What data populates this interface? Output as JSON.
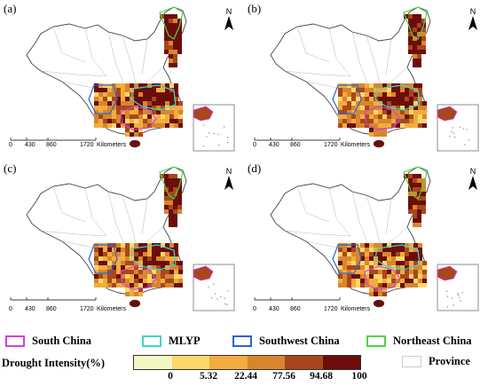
{
  "panels": [
    {
      "label": "(a)"
    },
    {
      "label": "(b)"
    },
    {
      "label": "(c)"
    },
    {
      "label": "(d)"
    }
  ],
  "north_arrow_text": "N",
  "scale_bar": {
    "ticks": [
      "0",
      "430",
      "860",
      "1720"
    ],
    "unit": "Kilometers"
  },
  "regions": [
    {
      "name": "South China",
      "color": "#d63fd6"
    },
    {
      "name": "MLYP",
      "color": "#3fd6c8"
    },
    {
      "name": "Southwest China",
      "color": "#2a64d6"
    },
    {
      "name": "Northeast China",
      "color": "#4fd63f"
    }
  ],
  "legend": {
    "title": "Drought Intensity(%)",
    "breaks": [
      "0",
      "5.32",
      "22.44",
      "77.56",
      "94.68",
      "100"
    ],
    "colors": [
      "#f1f6c3",
      "#fbd86a",
      "#f2ac3f",
      "#d8862d",
      "#a8471d",
      "#6b0d0d"
    ],
    "province_label": "Province",
    "province_color": "#ffffff"
  },
  "colors": {
    "boundary": "#b8b8b8",
    "outline": "#444444"
  }
}
